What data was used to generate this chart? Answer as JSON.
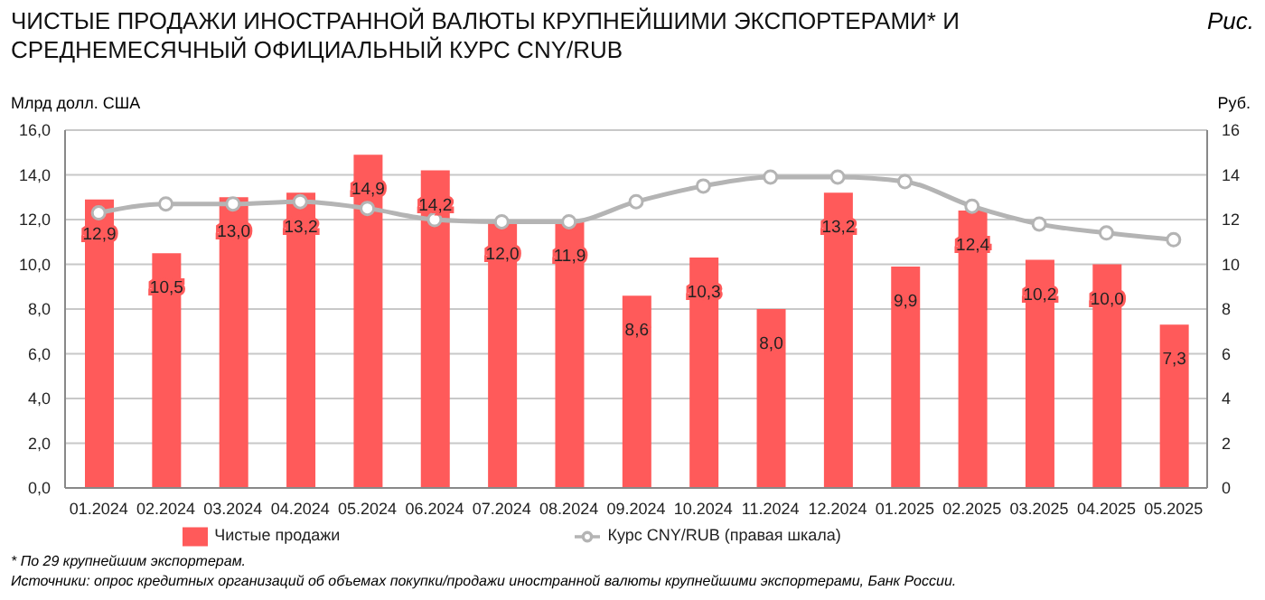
{
  "chart_data": {
    "type": "bar",
    "title": "ЧИСТЫЕ ПРОДАЖИ ИНОСТРАННОЙ ВАЛЮТЫ КРУПНЕЙШИМИ ЭКСПОРТЕРАМИ* И СРЕДНЕМЕСЯЧНЫЙ ОФИЦИАЛЬНЫЙ КУРС CNY/RUB",
    "ylabel": "Млрд долл. США",
    "y2label": "Руб.",
    "categories": [
      "01.2024",
      "02.2024",
      "03.2024",
      "04.2024",
      "05.2024",
      "06.2024",
      "07.2024",
      "08.2024",
      "09.2024",
      "10.2024",
      "11.2024",
      "12.2024",
      "01.2025",
      "02.2025",
      "03.2025",
      "04.2025",
      "05.2025"
    ],
    "series": [
      {
        "name": "Чистые продажи",
        "color": "#ff5a5a",
        "values": [
          12.9,
          10.5,
          13.0,
          13.2,
          14.9,
          14.2,
          12.0,
          11.9,
          8.6,
          10.3,
          8.0,
          13.2,
          9.9,
          12.4,
          10.2,
          10.0,
          7.3
        ],
        "value_labels": [
          "12,9",
          "10,5",
          "13,0",
          "13,2",
          "14,9",
          "14,2",
          "12,0",
          "11,9",
          "8,6",
          "10,3",
          "8,0",
          "13,2",
          "9,9",
          "12,4",
          "10,2",
          "10,0",
          "7,3"
        ]
      },
      {
        "name": "Курс CNY/RUB (правая шкала)",
        "type": "line",
        "axis": "y2",
        "color": "#b4b4b4",
        "marker": "circle",
        "values": [
          12.3,
          12.7,
          12.7,
          12.8,
          12.5,
          12.0,
          11.9,
          11.9,
          12.8,
          13.5,
          13.9,
          13.9,
          13.7,
          12.6,
          11.8,
          11.4,
          11.1
        ]
      }
    ],
    "ylim": [
      0,
      16
    ],
    "yticks": [
      {
        "value": 0,
        "label": "0,0"
      },
      {
        "value": 2,
        "label": "2,0"
      },
      {
        "value": 4,
        "label": "4,0"
      },
      {
        "value": 6,
        "label": "6,0"
      },
      {
        "value": 8,
        "label": "8,0"
      },
      {
        "value": 10,
        "label": "10,0"
      },
      {
        "value": 12,
        "label": "12,0"
      },
      {
        "value": 14,
        "label": "14,0"
      },
      {
        "value": 16,
        "label": "16,0"
      }
    ],
    "y2lim": [
      0,
      16
    ],
    "y2ticks": [
      0,
      2,
      4,
      6,
      8,
      10,
      12,
      14,
      16
    ],
    "grid": "y",
    "legend": "bottom",
    "annotations": [
      "Рис.",
      "* По 29 крупнейшим экспортерам.",
      "Источники: опрос кредитных организаций об объемах покупки/продажи иностранной валюты крупнейшими экспортерами, Банк России."
    ]
  }
}
